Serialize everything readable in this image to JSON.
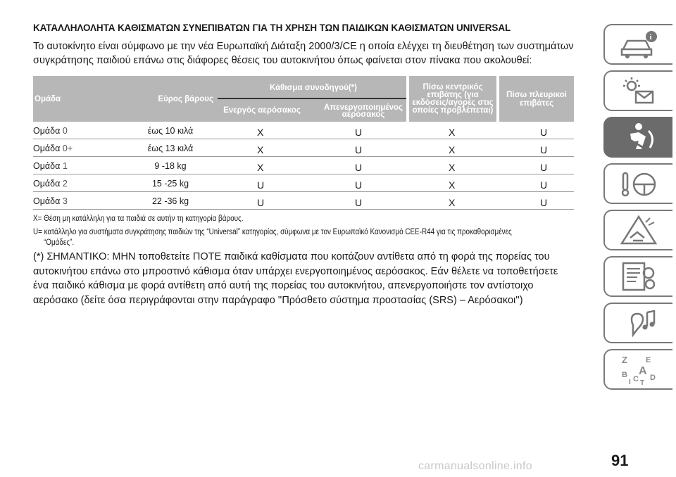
{
  "heading": "ΚΑΤΑΛΛΗΛΟΛΗΤΑ ΚΑΘΙΣΜΑΤΩΝ ΣΥΝΕΠΙΒΑΤΩΝ ΓΙΑ ΤΗ ΧΡΗΣΗ ΤΩΝ ΠΑΙΔΙΚΩΝ ΚΑΘΙΣΜΑΤΩΝ UNIVERSAL",
  "intro": "Το αυτοκίνητο είναι σύμφωνο με την νέα Ευρωπαϊκή Διάταξη 2000/3/CE η οποία ελέγχει τη διευθέτηση των συστημάτων συγκράτησης παιδιού επάνω στις διάφορες θέσεις του αυτοκινήτου όπως φαίνεται στον πίνακα που ακολουθεί:",
  "table": {
    "headers": {
      "group": "Ομάδα",
      "weight": "Εύρος βάρους",
      "front": "Κάθισμα συνοδηγού(*)",
      "front_active": "Ενεργός αερόσακος",
      "front_inactive": "Απενεργοποιημένος αερόσακος",
      "rear_center": "Πίσω κεντρικός επιβάτης (για εκδόσεις/αγορές στις οποίες προβλέπεται)",
      "rear_side": "Πίσω πλευρικοί επιβάτες"
    },
    "rows": [
      {
        "group": "Ομάδα",
        "num": "0",
        "weight": "έως 10 κιλά",
        "c1": "X",
        "c2": "U",
        "c3": "X",
        "c4": "U"
      },
      {
        "group": "Ομάδα",
        "num": "0+",
        "weight": "έως 13 κιλά",
        "c1": "X",
        "c2": "U",
        "c3": "X",
        "c4": "U"
      },
      {
        "group": "Ομάδα",
        "num": "1",
        "weight": "9 -18 kg",
        "c1": "X",
        "c2": "U",
        "c3": "X",
        "c4": "U"
      },
      {
        "group": "Ομάδα",
        "num": "2",
        "weight": "15 -25 kg",
        "c1": "U",
        "c2": "U",
        "c3": "X",
        "c4": "U"
      },
      {
        "group": "Ομάδα",
        "num": "3",
        "weight": "22 -36 kg",
        "c1": "U",
        "c2": "U",
        "c3": "X",
        "c4": "U"
      }
    ]
  },
  "notes": {
    "x": "X= Θέση μη κατάλληλη για τα παιδιά σε αυτήν τη κατηγορία βάρους.",
    "u": "U= κατάλληλο για συστήματα συγκράτησης παιδιών της “Universal” κατηγορίας, σύμφωνα με τον Ευρωπαϊκό Κανονισμό CEE-R44 για τις προκαθορισμένες",
    "u_cont": "“Ομάδες”."
  },
  "warning": "(*) ΣΗΜΑΝΤΙΚΟ: ΜΗΝ τοποθετείτε ΠΟΤΕ παιδικά καθίσματα που κοιτάζουν αντίθετα από τη φορά της πορείας του αυτοκινήτου επάνω στο μπροστινό κάθισμα όταν υπάρχει ενεργοποιημένος αερόσακος. Εάν θέλετε να τοποθετήσετε ένα παιδικό κάθισμα με φορά αντίθετη από αυτή της πορείας του αυτοκινήτου, απενεργοποιήστε τον αντίστοιχο αερόσακο (δείτε όσα περιγράφονται στην παράγραφο ''Πρόσθετο σύστημα προστασίας (SRS) – Αερόσακοι'')",
  "sidebar": {
    "tabs": [
      "car-info-icon",
      "warning-lights-icon",
      "seat-safety-icon",
      "steering-start-icon",
      "emergency-icon",
      "maintenance-icon",
      "multimedia-icon",
      "index-icon"
    ],
    "index_letters": [
      "Z",
      "E",
      "A",
      "B",
      "C",
      "D",
      "T",
      "I"
    ]
  },
  "page_number": "91",
  "watermark": "carmanualsonline.info"
}
